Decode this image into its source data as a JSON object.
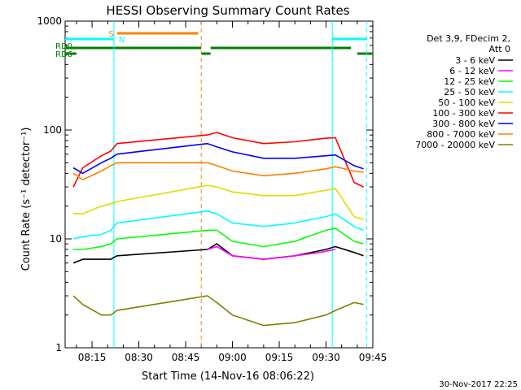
{
  "chart_data": {
    "type": "line",
    "title": "HESSI Observing Summary Count Rates",
    "xlabel": "Start Time (14-Nov-16 08:06:22)",
    "ylabel": "Count Rate (s⁻¹ detector⁻¹)",
    "xlim": [
      "08:06:22",
      "09:45:00"
    ],
    "ylim": [
      1,
      1000
    ],
    "yscale": "log",
    "x_ticks": [
      "08:15",
      "08:30",
      "08:45",
      "09:00",
      "09:15",
      "09:30",
      "09:45"
    ],
    "y_ticks": [
      "1",
      "10",
      "100",
      "1000"
    ],
    "legend_title": [
      "Det 3,9, FDecim 2,",
      "Att 0"
    ],
    "legend_position": "right",
    "series": [
      {
        "name": "3 - 6 keV",
        "color": "#000000",
        "x": [
          "08:09",
          "08:12",
          "08:18",
          "08:21",
          "08:23",
          "08:52",
          "08:55",
          "09:00",
          "09:10",
          "09:20",
          "09:30",
          "09:33",
          "09:39",
          "09:42"
        ],
        "y": [
          6,
          6.5,
          6.5,
          6.5,
          7,
          8,
          9,
          7,
          6.5,
          7,
          8,
          8.5,
          7.5,
          7
        ]
      },
      {
        "name": "6 - 12 keV",
        "color": "#ff00ff",
        "x": [
          "08:52",
          "08:55",
          "09:00",
          "09:10",
          "09:20",
          "09:28",
          "09:33"
        ],
        "y": [
          8,
          8.5,
          7,
          6.5,
          7,
          7.5,
          8
        ]
      },
      {
        "name": "12 - 25 keV",
        "color": "#00ff00",
        "x": [
          "08:09",
          "08:12",
          "08:18",
          "08:21",
          "08:23",
          "08:52",
          "08:55",
          "09:00",
          "09:10",
          "09:20",
          "09:30",
          "09:33",
          "09:39",
          "09:42"
        ],
        "y": [
          8,
          8,
          8.5,
          9,
          10,
          12,
          12,
          9.5,
          8.5,
          9.5,
          12,
          12.5,
          9.5,
          9
        ]
      },
      {
        "name": "25 - 50 keV",
        "color": "#00ffff",
        "x": [
          "08:09",
          "08:12",
          "08:18",
          "08:21",
          "08:23",
          "08:52",
          "08:55",
          "09:00",
          "09:10",
          "09:20",
          "09:30",
          "09:33",
          "09:39",
          "09:42"
        ],
        "y": [
          10,
          10.5,
          11,
          12,
          14,
          18,
          17,
          14,
          13,
          14,
          16,
          17,
          13,
          12
        ]
      },
      {
        "name": "50 - 100 keV",
        "color": "#dddd00",
        "x": [
          "08:09",
          "08:12",
          "08:18",
          "08:21",
          "08:23",
          "08:52",
          "08:55",
          "09:00",
          "09:10",
          "09:20",
          "09:30",
          "09:33",
          "09:39",
          "09:42"
        ],
        "y": [
          17,
          17,
          20,
          21,
          22,
          31,
          30,
          27,
          25,
          25,
          28,
          29,
          16,
          15
        ]
      },
      {
        "name": "100 - 300 keV",
        "color": "#ff0000",
        "x": [
          "08:09",
          "08:12",
          "08:18",
          "08:21",
          "08:23",
          "08:52",
          "08:55",
          "09:00",
          "09:10",
          "09:20",
          "09:30",
          "09:33",
          "09:39",
          "09:42"
        ],
        "y": [
          30,
          45,
          58,
          64,
          75,
          90,
          95,
          85,
          75,
          78,
          84,
          85,
          33,
          30
        ]
      },
      {
        "name": "300 - 800 keV",
        "color": "#0000ff",
        "x": [
          "08:09",
          "08:12",
          "08:18",
          "08:21",
          "08:23",
          "08:52",
          "08:55",
          "09:00",
          "09:10",
          "09:20",
          "09:30",
          "09:33",
          "09:39",
          "09:42"
        ],
        "y": [
          45,
          40,
          50,
          55,
          60,
          75,
          70,
          63,
          55,
          55,
          58,
          59,
          47,
          44
        ]
      },
      {
        "name": "800 - 7000 keV",
        "color": "#ff8000",
        "x": [
          "08:09",
          "08:12",
          "08:18",
          "08:21",
          "08:23",
          "08:52",
          "08:55",
          "09:00",
          "09:10",
          "09:20",
          "09:30",
          "09:33",
          "09:39",
          "09:42"
        ],
        "y": [
          40,
          35,
          42,
          47,
          50,
          50,
          47,
          42,
          38,
          40,
          44,
          46,
          42,
          41
        ]
      },
      {
        "name": "7000 - 20000 keV",
        "color": "#808000",
        "x": [
          "08:09",
          "08:12",
          "08:18",
          "08:21",
          "08:23",
          "08:52",
          "08:55",
          "09:00",
          "09:10",
          "09:20",
          "09:30",
          "09:33",
          "09:39",
          "09:42"
        ],
        "y": [
          3,
          2.5,
          2,
          2,
          2.2,
          3,
          2.6,
          2,
          1.6,
          1.7,
          2,
          2.2,
          2.6,
          2.5
        ]
      }
    ],
    "flag_bars": [
      {
        "label": "S",
        "color": "#ff8000",
        "segments": [
          [
            "08:23",
            "08:49"
          ]
        ]
      },
      {
        "label": "N",
        "color": "#00ffff",
        "segments": [
          [
            "08:06:22",
            "08:22"
          ],
          [
            "09:32",
            "09:43"
          ]
        ]
      },
      {
        "label": "RD0",
        "color": "#008000",
        "segments": [
          [
            "08:06:22",
            "08:50"
          ],
          [
            "08:53",
            "09:38"
          ]
        ]
      },
      {
        "label": "RD6",
        "color": "#008000",
        "segments": [
          [
            "08:06:22",
            "08:10"
          ],
          [
            "08:50",
            "08:53"
          ],
          [
            "09:40",
            "09:45"
          ]
        ]
      }
    ],
    "footer_date": "30-Nov-2017 22:25"
  }
}
